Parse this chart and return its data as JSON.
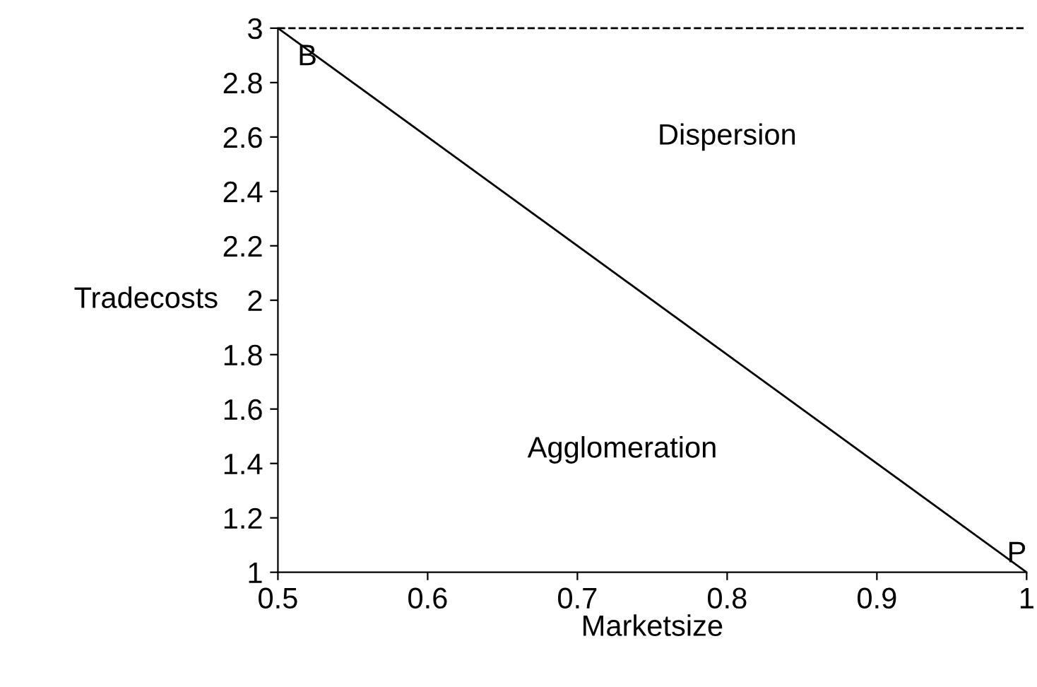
{
  "chart_data": {
    "type": "line",
    "xlabel": "Marketsize",
    "ylabel": "Tradecosts",
    "x": [
      0.5,
      1
    ],
    "series": [
      {
        "color": "#000000",
        "values": [
          3,
          1
        ]
      }
    ],
    "xlim": [
      0.5,
      1
    ],
    "ylim": [
      1,
      3
    ],
    "xticks": [
      0.5,
      0.6,
      0.7,
      0.8,
      0.9,
      1
    ],
    "yticks": [
      1,
      1.2,
      1.4,
      1.6,
      1.8,
      2,
      2.2,
      2.4,
      2.6,
      2.8,
      3
    ],
    "ref_lines": [
      {
        "axis": "y",
        "value": 3,
        "color": "#000000",
        "line_style": "dashed"
      }
    ],
    "annotations": [
      {
        "text": "B",
        "x": 0.5,
        "y": 3
      },
      {
        "text": "P",
        "x": 1,
        "y": 1
      },
      "Dispersion",
      "Agglomeration"
    ],
    "grid": false,
    "legend": false,
    "marker": "none",
    "line_style": "solid"
  }
}
